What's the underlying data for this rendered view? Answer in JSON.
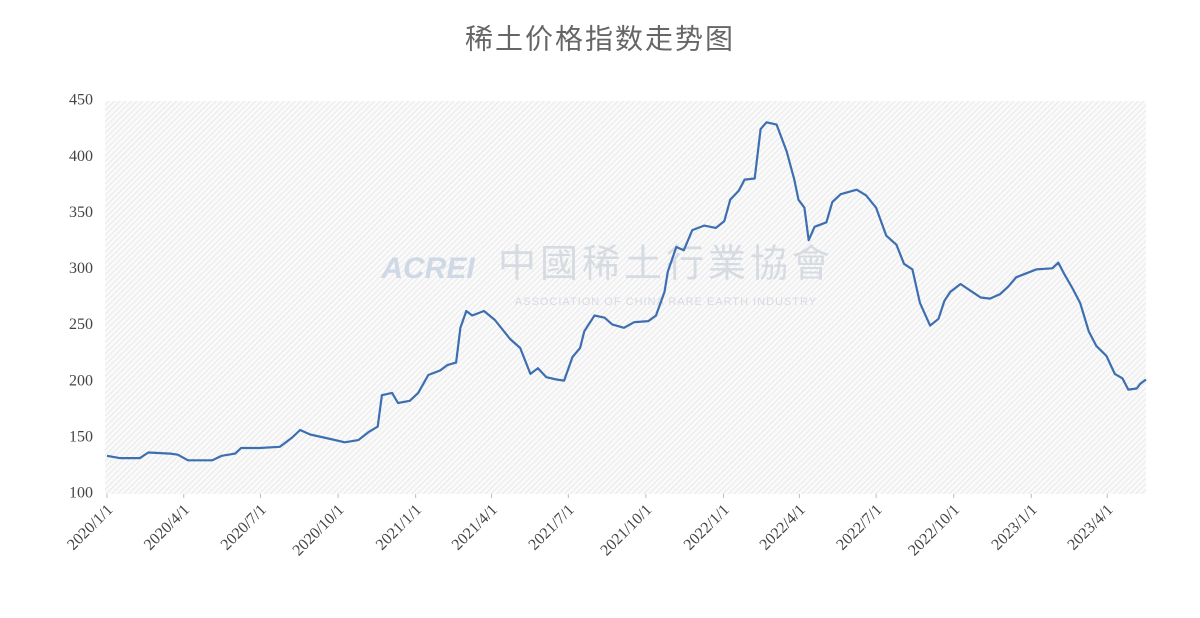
{
  "chart_data": {
    "type": "line",
    "title": "稀土价格指数走势图",
    "watermark": {
      "logo": "ACREI",
      "name": "中國稀土行業協會",
      "subtitle": "ASSOCIATION OF CHINA RARE EARTH INDUSTRY"
    },
    "x": [
      "2020/1/1",
      "2020/1/16",
      "2020/2/9",
      "2020/2/19",
      "2020/3/16",
      "2020/3/25",
      "2020/4/6",
      "2020/5/5",
      "2020/5/16",
      "2020/6/1",
      "2020/6/8",
      "2020/6/30",
      "2020/7/24",
      "2020/8/7",
      "2020/8/17",
      "2020/8/29",
      "2020/9/22",
      "2020/10/9",
      "2020/10/25",
      "2020/11/6",
      "2020/11/17",
      "2020/11/22",
      "2020/12/4",
      "2020/12/11",
      "2020/12/25",
      "2021/1/4",
      "2021/1/16",
      "2021/1/30",
      "2021/2/8",
      "2021/2/18",
      "2021/2/23",
      "2021/3/2",
      "2021/3/9",
      "2021/3/23",
      "2021/4/5",
      "2021/4/23",
      "2021/5/5",
      "2021/5/17",
      "2021/5/26",
      "2021/6/5",
      "2021/6/17",
      "2021/6/26",
      "2021/7/6",
      "2021/7/15",
      "2021/7/20",
      "2021/8/1",
      "2021/8/13",
      "2021/8/22",
      "2021/9/5",
      "2021/9/17",
      "2021/10/4",
      "2021/10/13",
      "2021/10/23",
      "2021/10/27",
      "2021/11/6",
      "2021/11/15",
      "2021/11/25",
      "2021/12/9",
      "2021/12/23",
      "2022/1/2",
      "2022/1/9",
      "2022/1/19",
      "2022/1/26",
      "2022/2/7",
      "2022/2/14",
      "2022/2/21",
      "2022/3/5",
      "2022/3/17",
      "2022/3/26",
      "2022/3/31",
      "2022/4/7",
      "2022/4/12",
      "2022/4/19",
      "2022/5/3",
      "2022/5/10",
      "2022/5/20",
      "2022/6/8",
      "2022/6/19",
      "2022/7/1",
      "2022/7/13",
      "2022/7/25",
      "2022/8/3",
      "2022/8/13",
      "2022/8/22",
      "2022/9/3",
      "2022/9/13",
      "2022/9/20",
      "2022/9/27",
      "2022/10/9",
      "2022/10/23",
      "2022/11/2",
      "2022/11/13",
      "2022/11/25",
      "2022/12/5",
      "2022/12/14",
      "2022/12/31",
      "2023/1/7",
      "2023/1/26",
      "2023/2/2",
      "2023/2/9",
      "2023/2/19",
      "2023/2/28",
      "2023/3/10",
      "2023/3/19",
      "2023/3/31",
      "2023/4/10",
      "2023/4/19",
      "2023/4/26",
      "2023/5/6",
      "2023/5/10",
      "2023/5/17"
    ],
    "values": [
      134,
      132,
      132,
      137,
      136,
      135,
      130,
      130,
      134,
      136,
      141,
      141,
      142,
      150,
      157,
      153,
      149,
      146,
      148,
      155,
      160,
      188,
      190,
      181,
      183,
      190,
      206,
      210,
      215,
      217,
      248,
      263,
      259,
      263,
      255,
      238,
      230,
      207,
      212,
      204,
      202,
      201,
      222,
      230,
      245,
      259,
      257,
      251,
      248,
      253,
      254,
      259,
      280,
      298,
      320,
      317,
      335,
      339,
      337,
      343,
      362,
      370,
      380,
      381,
      425,
      431,
      429,
      405,
      380,
      362,
      355,
      326,
      338,
      342,
      360,
      367,
      371,
      366,
      355,
      330,
      322,
      305,
      300,
      270,
      250,
      256,
      272,
      280,
      287,
      280,
      275,
      274,
      278,
      285,
      293,
      298,
      300,
      301,
      306,
      296,
      283,
      270,
      245,
      232,
      223,
      207,
      203,
      193,
      194,
      198,
      202
    ],
    "color": "#3d6fb0",
    "xlim": [
      "2020/1/1",
      "2023/5/17"
    ],
    "xticks": [
      "2020/1/1",
      "2020/4/1",
      "2020/7/1",
      "2020/10/1",
      "2021/1/1",
      "2021/4/1",
      "2021/7/1",
      "2021/10/1",
      "2022/1/1",
      "2022/4/1",
      "2022/7/1",
      "2022/10/1",
      "2023/1/1",
      "2023/4/1"
    ],
    "ylim": [
      100,
      450
    ],
    "yticks": [
      100,
      150,
      200,
      250,
      300,
      350,
      400,
      450
    ],
    "grid": false
  }
}
